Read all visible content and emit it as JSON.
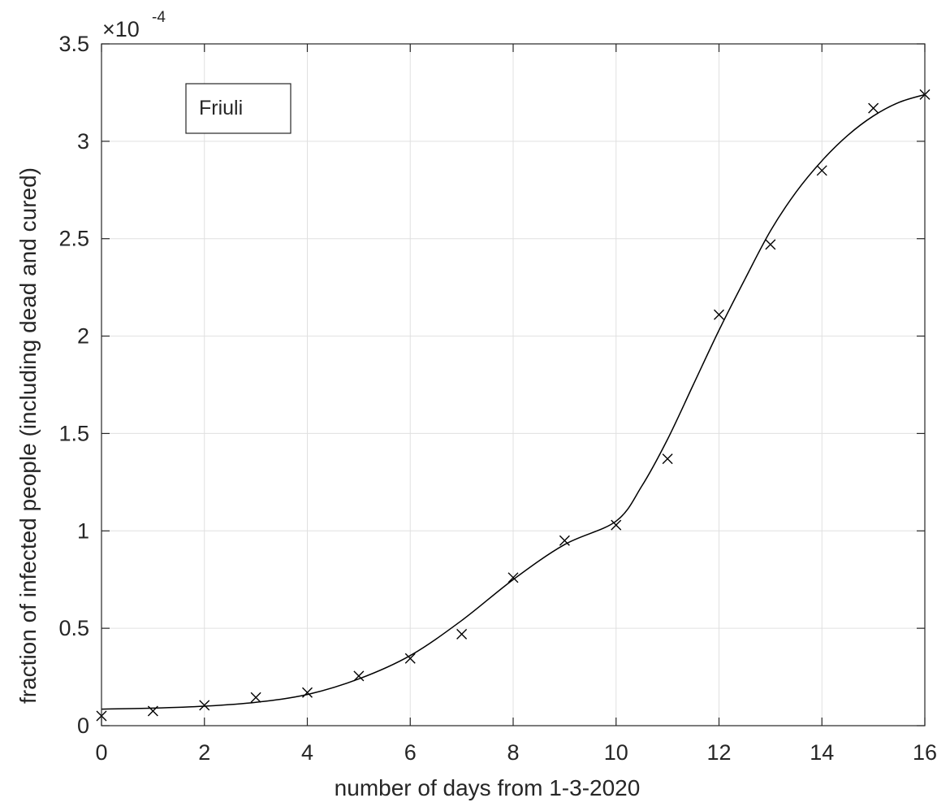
{
  "chart_data": {
    "type": "line",
    "title": "",
    "xlabel": "number of days from 1-3-2020",
    "ylabel": "fraction of infected people (including dead and cured)",
    "xlim": [
      0,
      16
    ],
    "ylim": [
      0,
      3.5
    ],
    "y_scale_factor": "×10",
    "y_scale_exponent": "-4",
    "grid": true,
    "xticks": [
      "0",
      "2",
      "4",
      "6",
      "8",
      "10",
      "12",
      "14",
      "16"
    ],
    "yticks": [
      "0",
      "0.5",
      "1",
      "1.5",
      "2",
      "2.5",
      "3",
      "3.5"
    ],
    "legend": {
      "text": "Friuli",
      "placement": "top-left"
    },
    "series": [
      {
        "kind": "markers",
        "marker": "x",
        "color": "#000000",
        "x": [
          0,
          1,
          2,
          3,
          4,
          5,
          6,
          7,
          8,
          9,
          10,
          11,
          12,
          13,
          14,
          15,
          16
        ],
        "y": [
          0.05,
          0.075,
          0.105,
          0.145,
          0.17,
          0.255,
          0.345,
          0.47,
          0.76,
          0.95,
          1.03,
          1.37,
          2.11,
          2.47,
          2.85,
          3.17,
          3.24
        ]
      },
      {
        "kind": "line",
        "color": "#000000",
        "x": [
          0,
          1,
          2,
          3,
          4,
          5,
          6,
          7,
          8,
          9,
          10,
          10.5,
          11,
          11.5,
          12,
          12.5,
          13,
          13.5,
          14,
          14.5,
          15,
          15.5,
          16
        ],
        "y": [
          0.085,
          0.09,
          0.1,
          0.12,
          0.16,
          0.24,
          0.36,
          0.54,
          0.75,
          0.93,
          1.05,
          1.23,
          1.47,
          1.75,
          2.03,
          2.29,
          2.54,
          2.74,
          2.9,
          3.03,
          3.13,
          3.2,
          3.24
        ]
      }
    ]
  }
}
